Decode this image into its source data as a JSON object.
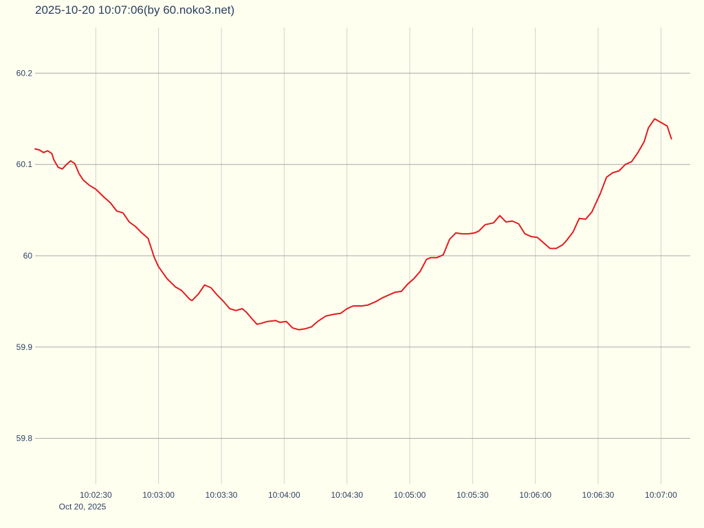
{
  "chart_data": {
    "type": "line",
    "title": "2025-10-20 10:07:06(by 60.noko3.net)",
    "xlabel": "",
    "ylabel": "",
    "date_label": "Oct 20, 2025",
    "x_range": [
      "10:02:01",
      "10:07:14"
    ],
    "ylim": [
      59.75,
      60.25
    ],
    "y_ticks": [
      60.2,
      60.1,
      60,
      59.9,
      59.8
    ],
    "y_tick_labels": [
      "60.2",
      "60.1",
      "60",
      "59.9",
      "59.8"
    ],
    "x_ticks": [
      "10:02:30",
      "10:03:00",
      "10:03:30",
      "10:04:00",
      "10:04:30",
      "10:05:00",
      "10:05:30",
      "10:06:00",
      "10:06:30",
      "10:07:00"
    ],
    "x_tick_labels": [
      "10:02:30",
      "10:03:00",
      "10:03:30",
      "10:04:00",
      "10:04:30",
      "10:05:00",
      "10:05:30",
      "10:06:00",
      "10:06:30",
      "10:07:00"
    ],
    "grid": true,
    "legend": "none",
    "colors": {
      "background": "#fffff0",
      "series": "#e31a1c",
      "text": "#2a3f5f",
      "grid_y": "#a8a8a8",
      "grid_x": "#d0d0d0"
    },
    "series": [
      {
        "x": [
          "10:02:01",
          "10:02:03",
          "10:02:05",
          "10:02:07",
          "10:02:09",
          "10:02:10",
          "10:02:12",
          "10:02:14",
          "10:02:16",
          "10:02:18",
          "10:02:20",
          "10:02:22",
          "10:02:24",
          "10:02:27",
          "10:02:30",
          "10:02:34",
          "10:02:37",
          "10:02:40",
          "10:02:43",
          "10:02:46",
          "10:02:49",
          "10:02:52",
          "10:02:55",
          "10:02:58",
          "10:03:00",
          "10:03:04",
          "10:03:08",
          "10:03:11",
          "10:03:15",
          "10:03:16",
          "10:03:19",
          "10:03:22",
          "10:03:25",
          "10:03:28",
          "10:03:31",
          "10:03:34",
          "10:03:37",
          "10:03:40",
          "10:03:42",
          "10:03:45",
          "10:03:47",
          "10:03:49",
          "10:03:52",
          "10:03:56",
          "10:03:58",
          "10:04:01",
          "10:04:04",
          "10:04:07",
          "10:04:10",
          "10:04:13",
          "10:04:16",
          "10:04:20",
          "10:04:24",
          "10:04:27",
          "10:04:30",
          "10:04:33",
          "10:04:37",
          "10:04:40",
          "10:04:44",
          "10:04:47",
          "10:04:50",
          "10:04:53",
          "10:04:56",
          "10:04:59",
          "10:05:02",
          "10:05:05",
          "10:05:08",
          "10:05:10",
          "10:05:13",
          "10:05:16",
          "10:05:19",
          "10:05:22",
          "10:05:25",
          "10:05:28",
          "10:05:31",
          "10:05:33",
          "10:05:36",
          "10:05:40",
          "10:05:43",
          "10:05:46",
          "10:05:49",
          "10:05:52",
          "10:05:55",
          "10:05:58",
          "10:06:01",
          "10:06:04",
          "10:06:07",
          "10:06:10",
          "10:06:13",
          "10:06:15",
          "10:06:18",
          "10:06:21",
          "10:06:24",
          "10:06:27",
          "10:06:31",
          "10:06:34",
          "10:06:37",
          "10:06:40",
          "10:06:43",
          "10:06:46",
          "10:06:49",
          "10:06:52",
          "10:06:54",
          "10:06:57",
          "10:07:00",
          "10:07:03",
          "10:07:05"
        ],
        "y": [
          60.117,
          60.116,
          60.113,
          60.115,
          60.112,
          60.105,
          60.097,
          60.095,
          60.1,
          60.104,
          60.101,
          60.09,
          60.083,
          60.077,
          60.073,
          60.064,
          60.058,
          60.049,
          60.047,
          60.037,
          60.032,
          60.025,
          60.019,
          59.998,
          59.988,
          59.975,
          59.966,
          59.962,
          59.952,
          59.951,
          59.958,
          59.968,
          59.965,
          59.957,
          59.95,
          59.942,
          59.94,
          59.942,
          59.938,
          59.93,
          59.925,
          59.926,
          59.928,
          59.929,
          59.927,
          59.928,
          59.921,
          59.919,
          59.92,
          59.922,
          59.928,
          59.934,
          59.936,
          59.937,
          59.942,
          59.945,
          59.945,
          59.946,
          59.95,
          59.954,
          59.957,
          59.96,
          59.961,
          59.969,
          59.975,
          59.983,
          59.996,
          59.998,
          59.998,
          60.001,
          60.018,
          60.025,
          60.024,
          60.024,
          60.025,
          60.027,
          60.034,
          60.036,
          60.044,
          60.037,
          60.038,
          60.035,
          60.024,
          60.021,
          60.02,
          60.014,
          60.008,
          60.008,
          60.012,
          60.017,
          60.026,
          60.041,
          60.04,
          60.048,
          60.068,
          60.086,
          60.091,
          60.093,
          60.1,
          60.103,
          60.113,
          60.125,
          60.14,
          60.15,
          60.146,
          60.142,
          60.128
        ]
      }
    ]
  }
}
